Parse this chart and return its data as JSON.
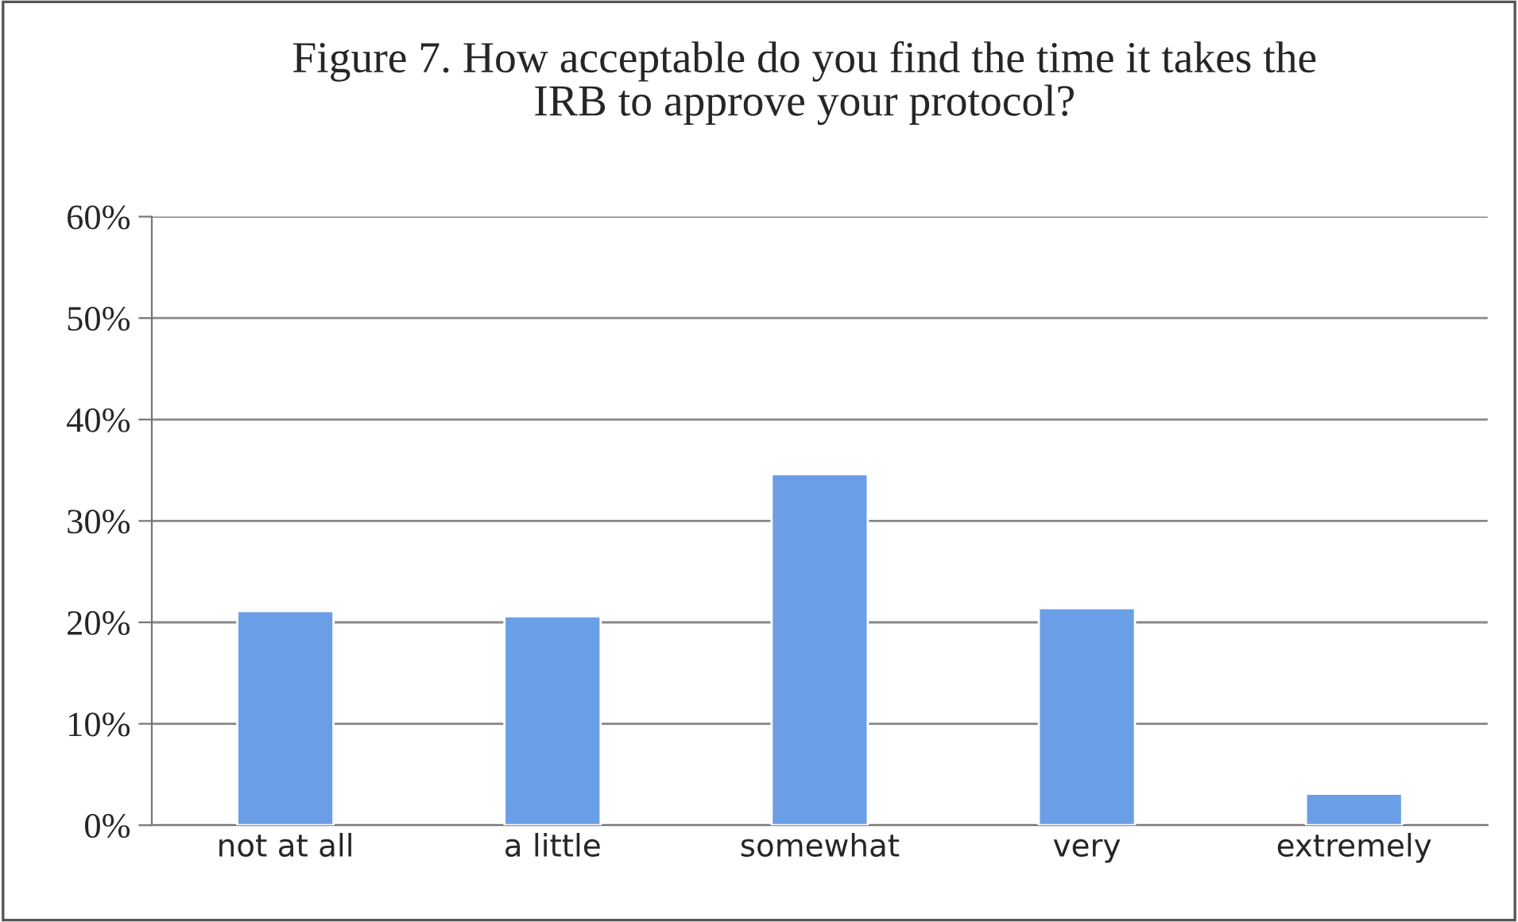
{
  "chart_data": {
    "type": "bar",
    "title": "Figure 7. How acceptable do you find the time it takes the\nIRB to approve your protocol?",
    "categories": [
      "not at all",
      "a little",
      "somewhat",
      "very",
      "extremely"
    ],
    "values": [
      21.1,
      20.6,
      34.6,
      21.4,
      3.1
    ],
    "color": "#6a9ee6",
    "ylim": [
      0,
      60
    ],
    "yticks": [
      {
        "value": 0,
        "label": "0%"
      },
      {
        "value": 10,
        "label": "10%"
      },
      {
        "value": 20,
        "label": "20%"
      },
      {
        "value": 30,
        "label": "30%"
      },
      {
        "value": 40,
        "label": "40%"
      },
      {
        "value": 50,
        "label": "50%"
      },
      {
        "value": 60,
        "label": "60%"
      }
    ],
    "grid": "y"
  }
}
